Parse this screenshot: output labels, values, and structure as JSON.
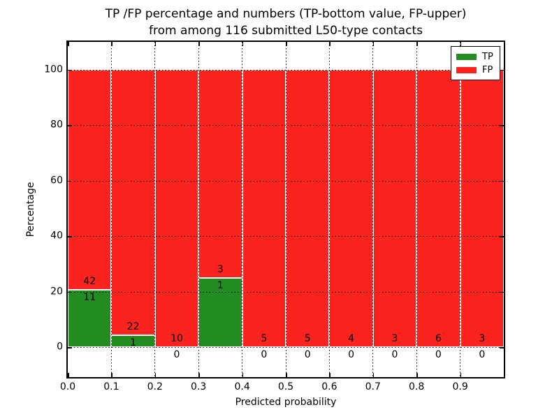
{
  "title": {
    "line1": "TP /FP percentage and numbers (TP-bottom value, FP-upper)",
    "line2": "from among 116 submitted L50-type contacts"
  },
  "chart_data": {
    "type": "bar",
    "stacked": true,
    "percent_normalized": true,
    "title": "TP /FP percentage and numbers (TP-bottom value, FP-upper) from among 116 submitted L50-type contacts",
    "total_contacts": 116,
    "xlabel": "Predicted probability",
    "ylabel": "Percentage",
    "xlim": [
      0.0,
      1.0
    ],
    "ylim": [
      -10.8,
      110
    ],
    "bin_width": 0.1,
    "x_tick_labels": [
      "0.0",
      "0.1",
      "0.2",
      "0.3",
      "0.4",
      "0.5",
      "0.6",
      "0.7",
      "0.8",
      "0.9"
    ],
    "y_ticks": [
      0,
      20,
      40,
      60,
      80,
      100
    ],
    "categories": [
      "0.0-0.1",
      "0.1-0.2",
      "0.2-0.3",
      "0.3-0.4",
      "0.4-0.5",
      "0.5-0.6",
      "0.6-0.7",
      "0.7-0.8",
      "0.8-0.9",
      "0.9-1.0"
    ],
    "series": [
      {
        "name": "TP",
        "color": "#228B22",
        "counts": [
          11,
          1,
          0,
          1,
          0,
          0,
          0,
          0,
          0,
          0
        ]
      },
      {
        "name": "FP",
        "color": "#FA231E",
        "counts": [
          42,
          22,
          10,
          3,
          5,
          5,
          4,
          3,
          6,
          3
        ]
      }
    ],
    "tp_percent_of_bin": [
      20.8,
      4.3,
      0.0,
      25.0,
      0.0,
      0.0,
      0.0,
      0.0,
      0.0,
      0.0
    ],
    "grid": true,
    "grid_style": "dotted",
    "legend_position": "upper right",
    "bar_edge_color": "#ffffff"
  }
}
